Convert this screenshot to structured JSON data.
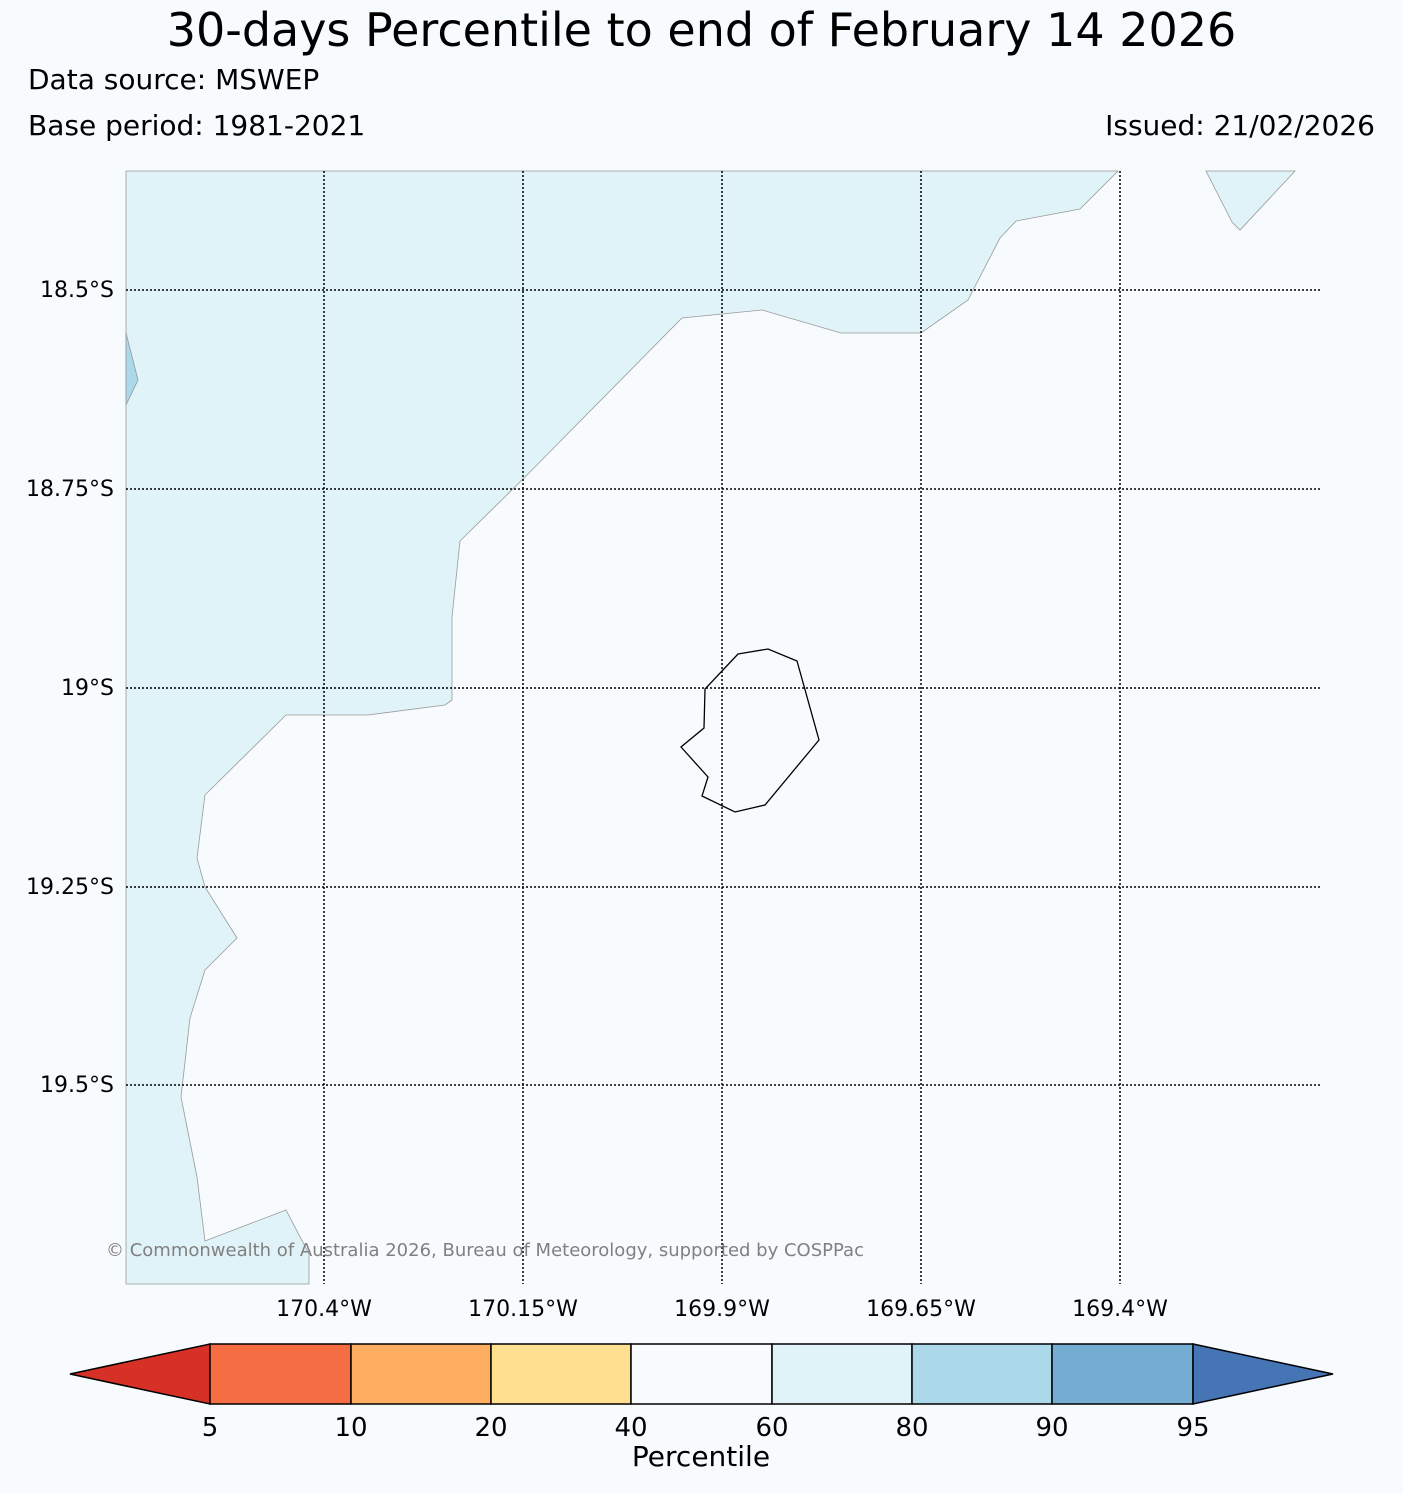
{
  "header": {
    "title": "30-days Percentile to end of February 14 2026",
    "data_source": "Data source: MSWEP",
    "base_period": "Base period: 1981-2021",
    "issued": "Issued: 21/02/2026"
  },
  "map": {
    "lat_labels": [
      "18.5°S",
      "18.75°S",
      "19°S",
      "19.25°S",
      "19.5°S"
    ],
    "lon_labels": [
      "170.4°W",
      "170.15°W",
      "169.9°W",
      "169.65°W",
      "169.4°W"
    ],
    "copyright": "© Commonwealth of Australia 2026, Bureau of Meteorology, supported by COSPPac",
    "colors": {
      "background": "#f7fbfd",
      "band_60_80": "#e0f3f8",
      "band_80_90": "#abd9e9"
    }
  },
  "colorbar": {
    "label": "Percentile",
    "ticks": [
      "5",
      "10",
      "20",
      "40",
      "60",
      "80",
      "90",
      "95"
    ],
    "colors": [
      "#d73027",
      "#f46d43",
      "#fdae61",
      "#fee090",
      "#f7fbfd",
      "#e0f3f8",
      "#abd9e9",
      "#74add1",
      "#4575b4"
    ]
  }
}
